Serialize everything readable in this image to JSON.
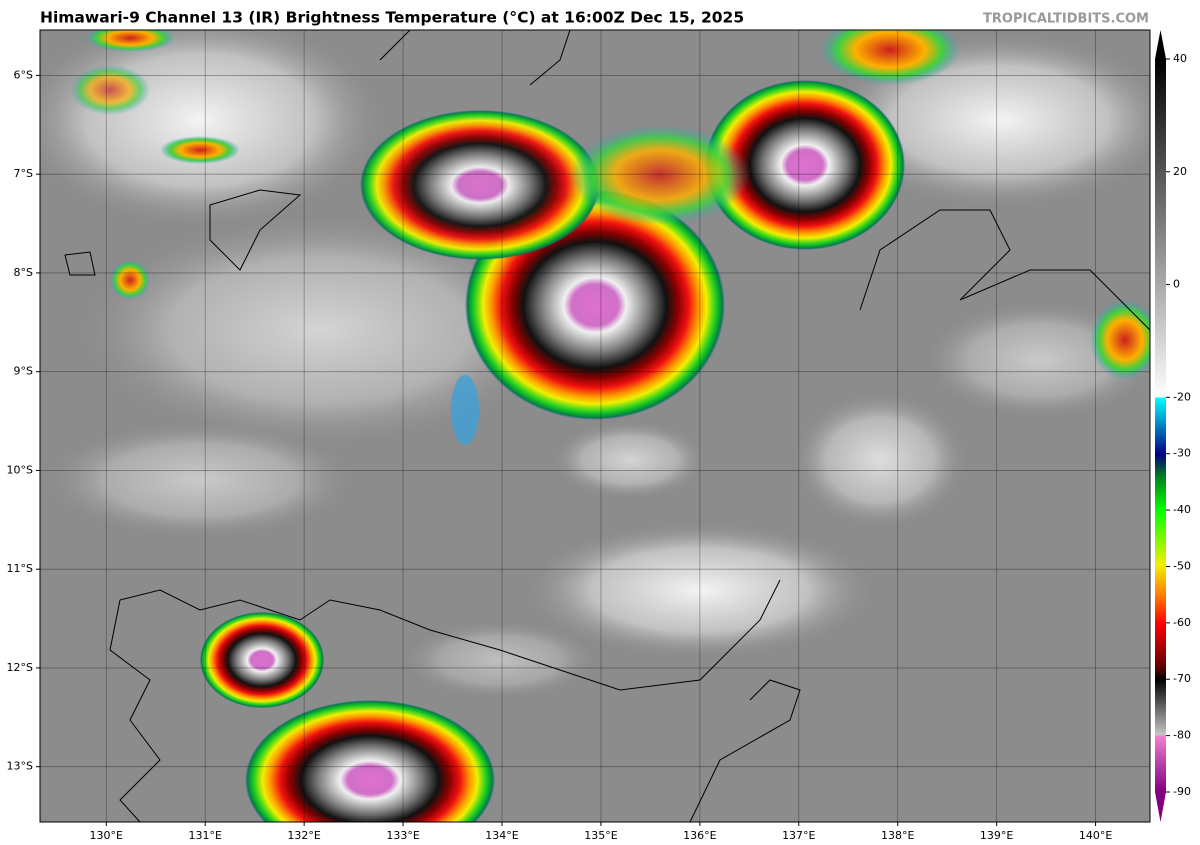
{
  "header": {
    "title": "Himawari-9 Channel 13 (IR) Brightness Temperature (°C) at 16:00Z Dec 15, 2025",
    "watermark": "TROPICALTIDBITS.COM"
  },
  "map": {
    "lonlim": [
      129.33,
      140.55
    ],
    "latlim": [
      -13.56,
      -5.54
    ],
    "lon_ticks": [
      {
        "value": 130,
        "label": "130°E"
      },
      {
        "value": 131,
        "label": "131°E"
      },
      {
        "value": 132,
        "label": "132°E"
      },
      {
        "value": 133,
        "label": "133°E"
      },
      {
        "value": 134,
        "label": "134°E"
      },
      {
        "value": 135,
        "label": "135°E"
      },
      {
        "value": 136,
        "label": "136°E"
      },
      {
        "value": 137,
        "label": "137°E"
      },
      {
        "value": 138,
        "label": "138°E"
      },
      {
        "value": 139,
        "label": "139°E"
      },
      {
        "value": 140,
        "label": "140°E"
      }
    ],
    "lat_ticks": [
      {
        "value": -6,
        "label": "6°S"
      },
      {
        "value": -7,
        "label": "7°S"
      },
      {
        "value": -8,
        "label": "8°S"
      },
      {
        "value": -9,
        "label": "9°S"
      },
      {
        "value": -10,
        "label": "10°S"
      },
      {
        "value": -11,
        "label": "11°S"
      },
      {
        "value": -12,
        "label": "12°S"
      },
      {
        "value": -13,
        "label": "13°S"
      }
    ],
    "grid": true
  },
  "colorbar": {
    "lim": [
      -90,
      40
    ],
    "ticks": [
      40,
      20,
      0,
      -20,
      -30,
      -40,
      -50,
      -60,
      -70,
      -80,
      -90
    ]
  }
}
